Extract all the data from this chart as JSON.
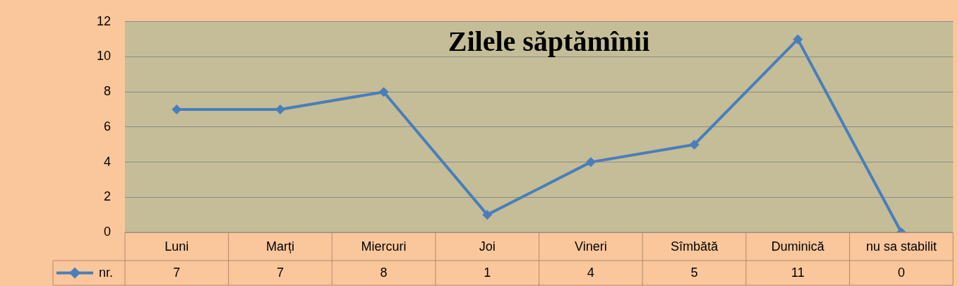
{
  "chart_data": {
    "type": "line",
    "title": "Zilele săptămînii",
    "categories": [
      "Luni",
      "Marți",
      "Miercuri",
      "Joi",
      "Vineri",
      "Sîmbătă",
      "Duminică",
      "nu sa stabilit"
    ],
    "series": [
      {
        "name": "nr.",
        "color": "#4a7ebb",
        "values": [
          7,
          7,
          8,
          1,
          4,
          5,
          11,
          0
        ]
      }
    ],
    "ylim": [
      0,
      12
    ],
    "yticks": [
      0,
      2,
      4,
      6,
      8,
      10,
      12
    ],
    "grid": "y",
    "legend": "bottom left",
    "marker": "diamond",
    "line_style": "solid",
    "data_labels": true
  }
}
